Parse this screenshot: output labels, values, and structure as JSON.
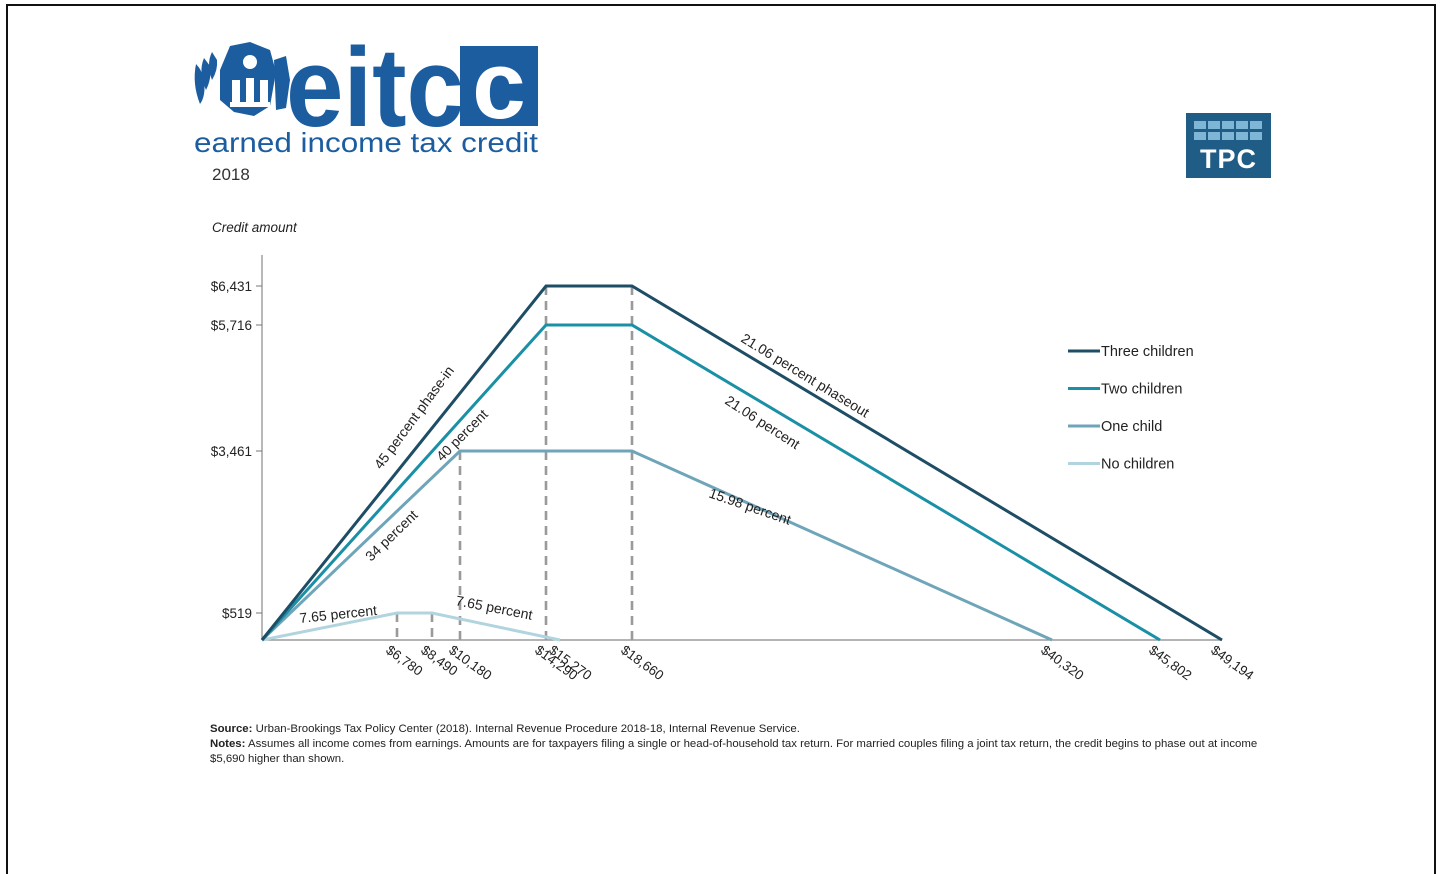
{
  "logo": {
    "word": "eitc",
    "tagline": "earned income tax credit",
    "year": "2018"
  },
  "tpc_logo": {
    "text": "TPC"
  },
  "colors": {
    "three_children": "#1e4d66",
    "two_children": "#1a90a6",
    "one_child": "#6fa5b8",
    "no_children": "#b2d4de",
    "eitc_blue": "#1c5da0",
    "tpc_blue": "#1f5c86",
    "guide": "#9a9a9a"
  },
  "chart_data": {
    "type": "line",
    "subtitle": "2018",
    "ylabel": "Credit amount",
    "xlabel": "",
    "yticks": [
      {
        "value": 6431,
        "label": "$6,431"
      },
      {
        "value": 5716,
        "label": "$5,716"
      },
      {
        "value": 3461,
        "label": "$3,461"
      },
      {
        "value": 519,
        "label": "$519"
      }
    ],
    "xticks": [
      {
        "value": 6780,
        "label": "$6,780"
      },
      {
        "value": 8490,
        "label": "$8,490"
      },
      {
        "value": 10180,
        "label": "$10,180"
      },
      {
        "value": 14290,
        "label": "$14,290"
      },
      {
        "value": 15270,
        "label": "$15,270"
      },
      {
        "value": 18660,
        "label": "$18,660"
      },
      {
        "value": 40320,
        "label": "$40,320"
      },
      {
        "value": 45802,
        "label": "$45,802"
      },
      {
        "value": 49194,
        "label": "$49,194"
      }
    ],
    "series": [
      {
        "name": "Three children",
        "key": "three_children",
        "x": [
          0,
          14290,
          18660,
          49194
        ],
        "y": [
          0,
          6431,
          6431,
          0
        ]
      },
      {
        "name": "Two children",
        "key": "two_children",
        "x": [
          0,
          14290,
          18660,
          45802
        ],
        "y": [
          0,
          5716,
          5716,
          0
        ]
      },
      {
        "name": "One child",
        "key": "one_child",
        "x": [
          0,
          10180,
          18660,
          40320
        ],
        "y": [
          0,
          3461,
          3461,
          0
        ]
      },
      {
        "name": "No children",
        "key": "no_children",
        "x": [
          0,
          6780,
          8490,
          15270
        ],
        "y": [
          0,
          519,
          519,
          0
        ]
      }
    ],
    "guides": [
      {
        "x": 6780,
        "y": 519
      },
      {
        "x": 8490,
        "y": 519
      },
      {
        "x": 10180,
        "y": 3461
      },
      {
        "x": 14290,
        "y": 6431
      },
      {
        "x": 18660,
        "y": 6431
      }
    ],
    "annotations": [
      {
        "text": "45 percent phase-in"
      },
      {
        "text": "40 percent"
      },
      {
        "text": "34 percent"
      },
      {
        "text": "7.65 percent"
      },
      {
        "text": "7.65 percent"
      },
      {
        "text": "21.06 percent phaseout"
      },
      {
        "text": "21.06 percent"
      },
      {
        "text": "15.98 percent"
      }
    ],
    "legend_position": "right",
    "grid": false
  },
  "notes": {
    "source_label": "Source:",
    "source_text": "Urban-Brookings Tax Policy Center (2018). Internal Revenue Procedure 2018-18, Internal Revenue Service.",
    "notes_label": "Notes:",
    "notes_text": "Assumes all income comes from earnings. Amounts are for taxpayers filing a single or head-of-household tax return. For married couples filing a joint tax return, the credit begins to phase out at income $5,690 higher than shown."
  }
}
